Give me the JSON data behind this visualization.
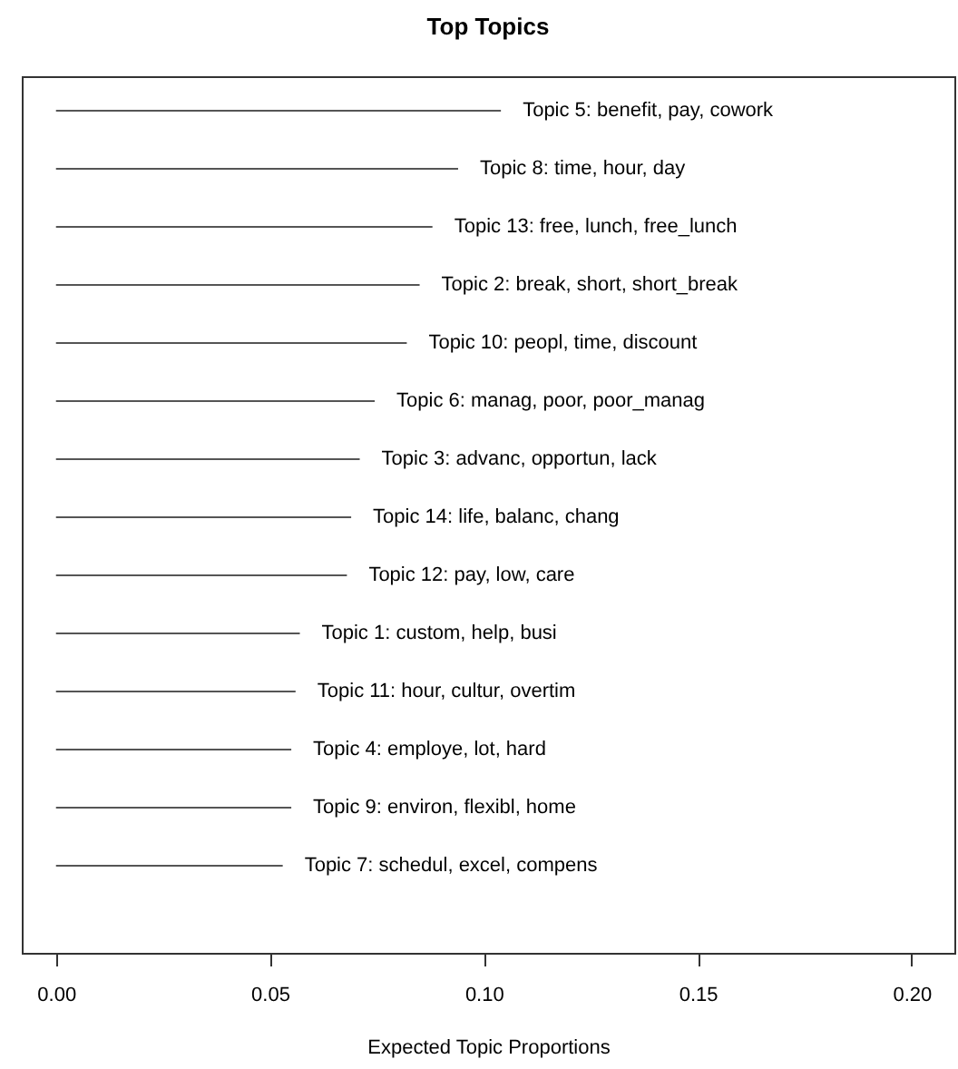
{
  "chart_data": {
    "type": "bar",
    "orientation": "horizontal",
    "title": "Top Topics",
    "xlabel": "Expected Topic Proportions",
    "categories": [
      "Topic 5: benefit, pay, cowork",
      "Topic 8: time, hour, day",
      "Topic 13: free, lunch, free_lunch",
      "Topic 2: break, short, short_break",
      "Topic 10: peopl, time, discount",
      "Topic 6: manag, poor, poor_manag",
      "Topic 3: advanc, opportun, lack",
      "Topic 14: life, balanc, chang",
      "Topic 12: pay, low, care",
      "Topic 1: custom, help, busi",
      "Topic 11: hour, cultur, overtim",
      "Topic 4: employe, lot, hard",
      "Topic 9: environ, flexibl, home",
      "Topic 7: schedul, excel, compens"
    ],
    "values": [
      0.104,
      0.094,
      0.088,
      0.085,
      0.082,
      0.0745,
      0.071,
      0.069,
      0.068,
      0.057,
      0.056,
      0.055,
      0.055,
      0.053
    ],
    "color": "#555555",
    "xlim": [
      -0.008,
      0.21
    ],
    "xticks": [
      {
        "value": 0,
        "label": "0.00"
      },
      {
        "value": 0.05,
        "label": "0.05"
      },
      {
        "value": 0.1,
        "label": "0.10"
      },
      {
        "value": 0.15,
        "label": "0.15"
      },
      {
        "value": 0.2,
        "label": "0.20"
      }
    ],
    "grid": false,
    "tick_labels": "x"
  }
}
